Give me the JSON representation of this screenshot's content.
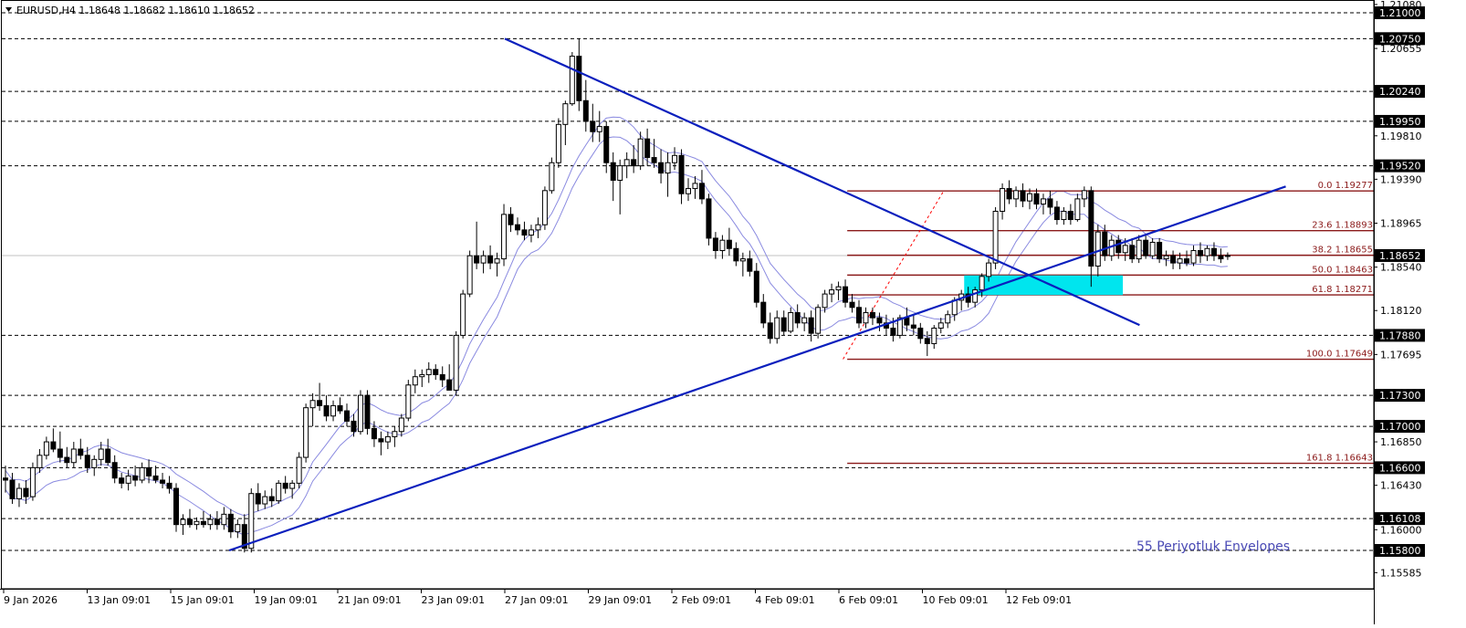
{
  "header": {
    "text": "EURUSD,H4  1.18648 1.18682 1.18610 1.18652"
  },
  "chart_data": {
    "type": "candlestick",
    "symbol": "EURUSD",
    "timeframe": "H4",
    "ohlc_current": {
      "open": 1.18648,
      "high": 1.18682,
      "low": 1.1861,
      "close": 1.18652
    },
    "current_price": 1.18652,
    "ylim": [
      1.1548,
      1.2112
    ],
    "y_ticks": [
      "1.21080",
      "1.20655",
      "1.19810",
      "1.19390",
      "1.18965",
      "1.18540",
      "1.18120",
      "1.17695",
      "1.16850",
      "1.16430",
      "1.16000",
      "1.15585"
    ],
    "x_ticks": [
      "9 Jan 2026",
      "13 Jan 09:01",
      "15 Jan 09:01",
      "19 Jan 09:01",
      "21 Jan 09:01",
      "23 Jan 09:01",
      "27 Jan 09:01",
      "29 Jan 09:01",
      "2 Feb 09:01",
      "4 Feb 09:01",
      "6 Feb 09:01",
      "10 Feb 09:01",
      "12 Feb 09:01"
    ],
    "horizontal_levels": [
      "1.21000",
      "1.20750",
      "1.20240",
      "1.19950",
      "1.19520",
      "1.17880",
      "1.17300",
      "1.17000",
      "1.16600",
      "1.16108",
      "1.15800"
    ],
    "fibonacci": {
      "levels": [
        {
          "label": "0.0 1.19277",
          "price": 1.19277
        },
        {
          "label": "23.6 1.18893",
          "price": 1.18893
        },
        {
          "label": "38.2 1.18655",
          "price": 1.18655
        },
        {
          "label": "50.0 1.18463",
          "price": 1.18463
        },
        {
          "label": "61.8 1.18271",
          "price": 1.18271
        },
        {
          "label": "100.0 1.17649",
          "price": 1.17649
        },
        {
          "label": "161.8 1.16643",
          "price": 1.16643
        }
      ]
    },
    "zone": {
      "top": 1.1846,
      "bottom": 1.1827
    },
    "trendlines": [
      {
        "name": "descending",
        "from": [
          6,
          1.2075
        ],
        "to": [
          13.6,
          1.1798
        ]
      },
      {
        "name": "ascending",
        "from": [
          2.7,
          1.158
        ],
        "to": [
          15.35,
          1.1932
        ]
      }
    ],
    "annotation": "55 Periyotluk Envelopes",
    "candles": [
      [
        1.165,
        1.1662,
        1.1636,
        1.1648
      ],
      [
        1.1648,
        1.1655,
        1.1625,
        1.163
      ],
      [
        1.163,
        1.1645,
        1.1622,
        1.164
      ],
      [
        1.164,
        1.1648,
        1.1625,
        1.1632
      ],
      [
        1.1632,
        1.1665,
        1.1628,
        1.166
      ],
      [
        1.166,
        1.1678,
        1.1655,
        1.1672
      ],
      [
        1.1672,
        1.169,
        1.1668,
        1.1685
      ],
      [
        1.1685,
        1.1698,
        1.1675,
        1.1678
      ],
      [
        1.1678,
        1.1695,
        1.1665,
        1.167
      ],
      [
        1.167,
        1.168,
        1.166,
        1.1665
      ],
      [
        1.1665,
        1.1685,
        1.166,
        1.1678
      ],
      [
        1.1678,
        1.1688,
        1.1668,
        1.1672
      ],
      [
        1.1672,
        1.168,
        1.1655,
        1.166
      ],
      [
        1.166,
        1.1672,
        1.1652,
        1.1668
      ],
      [
        1.1668,
        1.1685,
        1.1662,
        1.1678
      ],
      [
        1.1678,
        1.1688,
        1.1662,
        1.1665
      ],
      [
        1.1665,
        1.1672,
        1.1645,
        1.165
      ],
      [
        1.165,
        1.1655,
        1.164,
        1.1645
      ],
      [
        1.1645,
        1.1658,
        1.1638,
        1.1652
      ],
      [
        1.1652,
        1.1662,
        1.1642,
        1.1648
      ],
      [
        1.1648,
        1.1665,
        1.1645,
        1.166
      ],
      [
        1.166,
        1.1668,
        1.1645,
        1.1652
      ],
      [
        1.1652,
        1.1662,
        1.1645,
        1.1648
      ],
      [
        1.1648,
        1.1655,
        1.164,
        1.1645
      ],
      [
        1.1645,
        1.1652,
        1.1635,
        1.164
      ],
      [
        1.164,
        1.1645,
        1.1598,
        1.1605
      ],
      [
        1.1605,
        1.1615,
        1.1595,
        1.161
      ],
      [
        1.161,
        1.162,
        1.1602,
        1.1605
      ],
      [
        1.1605,
        1.1612,
        1.16,
        1.1608
      ],
      [
        1.1608,
        1.1618,
        1.1602,
        1.1605
      ],
      [
        1.1605,
        1.1615,
        1.16,
        1.161
      ],
      [
        1.161,
        1.1618,
        1.16,
        1.1605
      ],
      [
        1.1605,
        1.1622,
        1.16,
        1.1615
      ],
      [
        1.1615,
        1.162,
        1.1592,
        1.1598
      ],
      [
        1.1598,
        1.161,
        1.1592,
        1.1605
      ],
      [
        1.1605,
        1.1615,
        1.1578,
        1.1582
      ],
      [
        1.1582,
        1.164,
        1.1578,
        1.1635
      ],
      [
        1.1635,
        1.1645,
        1.1618,
        1.1625
      ],
      [
        1.1625,
        1.1638,
        1.162,
        1.1632
      ],
      [
        1.1632,
        1.164,
        1.1622,
        1.1628
      ],
      [
        1.1628,
        1.1648,
        1.1625,
        1.1645
      ],
      [
        1.1645,
        1.1652,
        1.1635,
        1.164
      ],
      [
        1.164,
        1.1648,
        1.163,
        1.1645
      ],
      [
        1.1645,
        1.1675,
        1.164,
        1.167
      ],
      [
        1.167,
        1.1722,
        1.1665,
        1.1718
      ],
      [
        1.1718,
        1.1732,
        1.17,
        1.1725
      ],
      [
        1.1725,
        1.1742,
        1.1715,
        1.172
      ],
      [
        1.172,
        1.173,
        1.1705,
        1.171
      ],
      [
        1.171,
        1.1725,
        1.1705,
        1.172
      ],
      [
        1.172,
        1.1728,
        1.1712,
        1.1715
      ],
      [
        1.1715,
        1.1722,
        1.17,
        1.1705
      ],
      [
        1.1705,
        1.1712,
        1.169,
        1.1695
      ],
      [
        1.1695,
        1.1735,
        1.1692,
        1.173
      ],
      [
        1.173,
        1.1735,
        1.1692,
        1.1698
      ],
      [
        1.1698,
        1.1705,
        1.168,
        1.1688
      ],
      [
        1.1688,
        1.1695,
        1.1672,
        1.1685
      ],
      [
        1.1685,
        1.1695,
        1.1678,
        1.169
      ],
      [
        1.169,
        1.17,
        1.168,
        1.1695
      ],
      [
        1.1695,
        1.1712,
        1.169,
        1.1708
      ],
      [
        1.1708,
        1.1745,
        1.1705,
        1.174
      ],
      [
        1.174,
        1.1755,
        1.1732,
        1.1748
      ],
      [
        1.1748,
        1.1755,
        1.1738,
        1.175
      ],
      [
        1.175,
        1.1762,
        1.1742,
        1.1755
      ],
      [
        1.1755,
        1.176,
        1.1745,
        1.175
      ],
      [
        1.175,
        1.1758,
        1.1738,
        1.1745
      ],
      [
        1.1745,
        1.176,
        1.1738,
        1.1735
      ],
      [
        1.1735,
        1.1792,
        1.173,
        1.1788
      ],
      [
        1.1788,
        1.1832,
        1.1785,
        1.1828
      ],
      [
        1.1828,
        1.187,
        1.1825,
        1.1865
      ],
      [
        1.1865,
        1.1898,
        1.1852,
        1.1858
      ],
      [
        1.1858,
        1.187,
        1.1848,
        1.1865
      ],
      [
        1.1865,
        1.1875,
        1.1852,
        1.1858
      ],
      [
        1.1858,
        1.1868,
        1.1845,
        1.1862
      ],
      [
        1.1862,
        1.1915,
        1.1855,
        1.1905
      ],
      [
        1.1905,
        1.1912,
        1.1888,
        1.1895
      ],
      [
        1.1895,
        1.1902,
        1.1885,
        1.189
      ],
      [
        1.189,
        1.1898,
        1.188,
        1.1885
      ],
      [
        1.1885,
        1.1895,
        1.1878,
        1.189
      ],
      [
        1.189,
        1.1902,
        1.1882,
        1.1895
      ],
      [
        1.1895,
        1.1932,
        1.189,
        1.1928
      ],
      [
        1.1928,
        1.196,
        1.1925,
        1.1955
      ],
      [
        1.1955,
        1.1998,
        1.195,
        1.1992
      ],
      [
        1.1992,
        1.2015,
        1.1972,
        1.2012
      ],
      [
        1.2012,
        1.2062,
        1.201,
        1.2058
      ],
      [
        1.2058,
        1.2075,
        1.2005,
        1.2015
      ],
      [
        1.2015,
        1.2035,
        1.1985,
        1.1995
      ],
      [
        1.1995,
        1.2012,
        1.1975,
        1.1985
      ],
      [
        1.1985,
        1.2005,
        1.1975,
        1.199
      ],
      [
        1.199,
        1.1995,
        1.1945,
        1.1955
      ],
      [
        1.1955,
        1.1965,
        1.1918,
        1.1938
      ],
      [
        1.1938,
        1.1958,
        1.1905,
        1.1952
      ],
      [
        1.1952,
        1.1965,
        1.194,
        1.1958
      ],
      [
        1.1958,
        1.1972,
        1.1945,
        1.1952
      ],
      [
        1.1952,
        1.1985,
        1.1948,
        1.1978
      ],
      [
        1.1978,
        1.1988,
        1.1952,
        1.196
      ],
      [
        1.196,
        1.1978,
        1.195,
        1.1955
      ],
      [
        1.1955,
        1.1968,
        1.1935,
        1.1945
      ],
      [
        1.1945,
        1.1965,
        1.1922,
        1.1955
      ],
      [
        1.1955,
        1.197,
        1.1948,
        1.1962
      ],
      [
        1.1962,
        1.1968,
        1.1915,
        1.1925
      ],
      [
        1.1925,
        1.194,
        1.1918,
        1.193
      ],
      [
        1.193,
        1.1942,
        1.192,
        1.1935
      ],
      [
        1.1935,
        1.1948,
        1.1915,
        1.192
      ],
      [
        1.192,
        1.1925,
        1.1875,
        1.1882
      ],
      [
        1.1882,
        1.1888,
        1.1862,
        1.187
      ],
      [
        1.187,
        1.1885,
        1.1862,
        1.188
      ],
      [
        1.188,
        1.1892,
        1.1865,
        1.1872
      ],
      [
        1.1872,
        1.1878,
        1.1855,
        1.186
      ],
      [
        1.186,
        1.1868,
        1.1845,
        1.1862
      ],
      [
        1.1862,
        1.187,
        1.1845,
        1.185
      ],
      [
        1.185,
        1.1858,
        1.1815,
        1.182
      ],
      [
        1.182,
        1.1828,
        1.1795,
        1.18
      ],
      [
        1.18,
        1.181,
        1.178,
        1.1785
      ],
      [
        1.1785,
        1.1812,
        1.178,
        1.1805
      ],
      [
        1.1805,
        1.1812,
        1.1788,
        1.1792
      ],
      [
        1.1792,
        1.1815,
        1.179,
        1.181
      ],
      [
        1.181,
        1.1818,
        1.1795,
        1.18
      ],
      [
        1.18,
        1.181,
        1.1792,
        1.1805
      ],
      [
        1.1805,
        1.1812,
        1.1782,
        1.179
      ],
      [
        1.179,
        1.1818,
        1.1785,
        1.1815
      ],
      [
        1.1815,
        1.1832,
        1.181,
        1.1828
      ],
      [
        1.1828,
        1.1838,
        1.182,
        1.1832
      ],
      [
        1.1832,
        1.184,
        1.1822,
        1.1835
      ],
      [
        1.1835,
        1.1842,
        1.1815,
        1.182
      ],
      [
        1.182,
        1.1828,
        1.181,
        1.1815
      ],
      [
        1.1815,
        1.1822,
        1.1795,
        1.18
      ],
      [
        1.18,
        1.1815,
        1.1795,
        1.181
      ],
      [
        1.181,
        1.1815,
        1.1798,
        1.1805
      ],
      [
        1.1805,
        1.181,
        1.1792,
        1.18
      ],
      [
        1.18,
        1.1808,
        1.1788,
        1.1795
      ],
      [
        1.1795,
        1.1805,
        1.1782,
        1.1788
      ],
      [
        1.1788,
        1.1808,
        1.1785,
        1.1805
      ],
      [
        1.1805,
        1.1815,
        1.1792,
        1.1798
      ],
      [
        1.1798,
        1.1808,
        1.1788,
        1.1795
      ],
      [
        1.1795,
        1.18,
        1.178,
        1.1785
      ],
      [
        1.1785,
        1.1792,
        1.1768,
        1.178
      ],
      [
        1.178,
        1.1798,
        1.1775,
        1.1795
      ],
      [
        1.1795,
        1.1805,
        1.179,
        1.18
      ],
      [
        1.18,
        1.1812,
        1.1795,
        1.1808
      ],
      [
        1.1808,
        1.1825,
        1.1802,
        1.1822
      ],
      [
        1.1822,
        1.1832,
        1.1812,
        1.1828
      ],
      [
        1.1828,
        1.1835,
        1.1815,
        1.182
      ],
      [
        1.182,
        1.1835,
        1.1815,
        1.1832
      ],
      [
        1.1832,
        1.1848,
        1.1825,
        1.1845
      ],
      [
        1.1845,
        1.1862,
        1.184,
        1.1858
      ],
      [
        1.1858,
        1.1912,
        1.1852,
        1.1908
      ],
      [
        1.1908,
        1.1935,
        1.19,
        1.193
      ],
      [
        1.193,
        1.1938,
        1.1915,
        1.192
      ],
      [
        1.192,
        1.1932,
        1.1912,
        1.1928
      ],
      [
        1.1928,
        1.1935,
        1.1912,
        1.1918
      ],
      [
        1.1918,
        1.193,
        1.191,
        1.1925
      ],
      [
        1.1925,
        1.193,
        1.191,
        1.1915
      ],
      [
        1.1915,
        1.1925,
        1.1905,
        1.192
      ],
      [
        1.192,
        1.1928,
        1.1905,
        1.1912
      ],
      [
        1.1912,
        1.1918,
        1.1895,
        1.19
      ],
      [
        1.19,
        1.1912,
        1.1895,
        1.1908
      ],
      [
        1.1908,
        1.1915,
        1.1895,
        1.19
      ],
      [
        1.19,
        1.1925,
        1.1898,
        1.192
      ],
      [
        1.192,
        1.1932,
        1.1912,
        1.1928
      ],
      [
        1.1928,
        1.1932,
        1.1835,
        1.1855
      ],
      [
        1.1855,
        1.1895,
        1.1845,
        1.1888
      ],
      [
        1.1888,
        1.1895,
        1.186,
        1.1865
      ],
      [
        1.1865,
        1.1885,
        1.186,
        1.188
      ],
      [
        1.188,
        1.1885,
        1.1862,
        1.1868
      ],
      [
        1.1868,
        1.1882,
        1.186,
        1.1875
      ],
      [
        1.1875,
        1.1882,
        1.1858,
        1.1862
      ],
      [
        1.1862,
        1.1885,
        1.1858,
        1.188
      ],
      [
        1.188,
        1.1885,
        1.1862,
        1.1865
      ],
      [
        1.1865,
        1.1882,
        1.1862,
        1.1878
      ],
      [
        1.1878,
        1.1882,
        1.1858,
        1.1862
      ],
      [
        1.1862,
        1.187,
        1.1855,
        1.1865
      ],
      [
        1.1865,
        1.187,
        1.1852,
        1.1858
      ],
      [
        1.1858,
        1.1868,
        1.1852,
        1.1862
      ],
      [
        1.1862,
        1.187,
        1.1855,
        1.1858
      ],
      [
        1.1858,
        1.1875,
        1.1855,
        1.187
      ],
      [
        1.187,
        1.1878,
        1.1858,
        1.1865
      ],
      [
        1.1865,
        1.1875,
        1.186,
        1.1872
      ],
      [
        1.1872,
        1.1878,
        1.186,
        1.1865
      ],
      [
        1.1865,
        1.1872,
        1.1858,
        1.1862
      ],
      [
        1.18648,
        1.18682,
        1.1861,
        1.18652
      ]
    ]
  }
}
